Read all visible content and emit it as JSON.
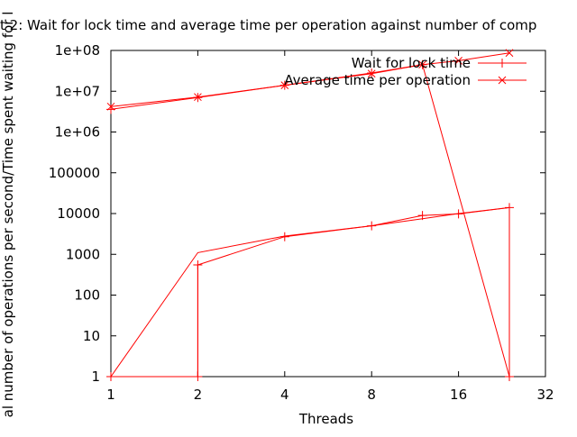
{
  "chart_data": {
    "type": "line",
    "title": "t 2: Wait for lock time and average time per operation against number of comp",
    "xlabel": "Threads",
    "ylabel": "al number of operations per second/Time spent waiting for l",
    "x_scale": "log2",
    "y_scale": "log10",
    "xlim": [
      1,
      32
    ],
    "ylim": [
      1,
      100000000
    ],
    "x_ticks": [
      1,
      2,
      4,
      8,
      16,
      32
    ],
    "x_tick_labels": [
      "1",
      "2",
      "4",
      "8",
      "16",
      "32"
    ],
    "y_ticks": [
      1,
      10,
      100,
      1000,
      10000,
      100000,
      1000000,
      10000000,
      100000000
    ],
    "y_tick_labels": [
      "1",
      "10",
      "100",
      "1000",
      "10000",
      "100000",
      "1e+06",
      "1e+07",
      "1e+08"
    ],
    "grid": false,
    "legend_position": "top-right",
    "series": [
      {
        "name": "Wait for lock time",
        "marker": "plus",
        "color": "#ff0000",
        "x": [
          1,
          2,
          2,
          4,
          8,
          12,
          16,
          24,
          24,
          12,
          8,
          4,
          2,
          1
        ],
        "y": [
          1,
          1,
          550,
          2700,
          5000,
          9000,
          9800,
          14000,
          1,
          45000000,
          28000000,
          14000000,
          7000000,
          3600000
        ]
      },
      {
        "name": "Average time per operation",
        "marker": "cross",
        "color": "#ff0000",
        "x": [
          1,
          2,
          4,
          8,
          12,
          16,
          24
        ],
        "y": [
          1,
          1100,
          2800,
          5000,
          7500,
          10000,
          14000
        ]
      }
    ],
    "extra_series_upper": {
      "x": [
        1,
        2,
        4,
        8,
        12,
        16,
        24
      ],
      "y": [
        4200000,
        7200000,
        14000000,
        27000000,
        45000000,
        56000000,
        87000000
      ]
    }
  }
}
